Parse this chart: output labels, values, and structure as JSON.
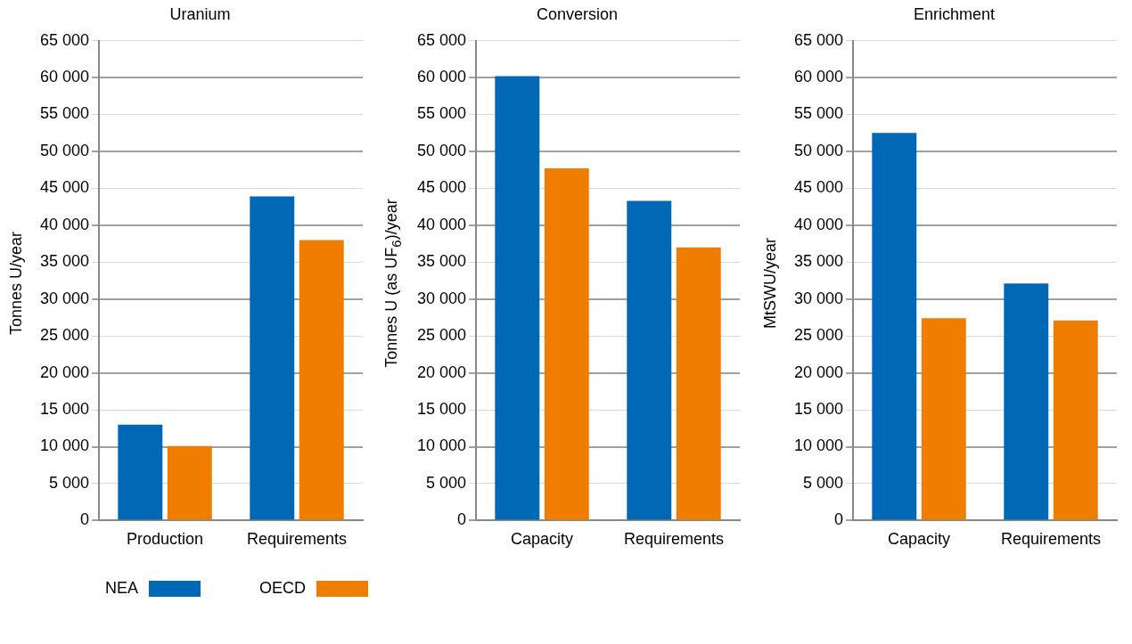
{
  "chart_data": [
    {
      "type": "bar",
      "title": "Uranium",
      "ylabel": "Tonnes U/year",
      "categories": [
        "Production",
        "Requirements"
      ],
      "series": [
        {
          "name": "NEA",
          "color": "#0068b5",
          "values": [
            13000,
            43900
          ]
        },
        {
          "name": "OECD",
          "color": "#ef7d00",
          "values": [
            10100,
            38000
          ]
        }
      ],
      "ylim": [
        0,
        65000
      ],
      "yticks": [
        {
          "value": 0,
          "label": "0"
        },
        {
          "value": 5000,
          "label": "5 000"
        },
        {
          "value": 10000,
          "label": "10 000"
        },
        {
          "value": 15000,
          "label": "15 000"
        },
        {
          "value": 20000,
          "label": "20 000"
        },
        {
          "value": 25000,
          "label": "25 000"
        },
        {
          "value": 30000,
          "label": "30 000"
        },
        {
          "value": 35000,
          "label": "35 000"
        },
        {
          "value": 40000,
          "label": "40 000"
        },
        {
          "value": 45000,
          "label": "45 000"
        },
        {
          "value": 50000,
          "label": "50 000"
        },
        {
          "value": 55000,
          "label": "55 000"
        },
        {
          "value": 60000,
          "label": "60 000"
        },
        {
          "value": 65000,
          "label": "65 000"
        }
      ],
      "grid": "y",
      "legend": "bottom"
    },
    {
      "type": "bar",
      "title": "Conversion",
      "ylabel": "Tonnes U (as UF$_{6}$)/year",
      "categories": [
        "Capacity",
        "Requirements"
      ],
      "series": [
        {
          "color": "#0068b5",
          "values": [
            60200,
            43300
          ]
        },
        {
          "color": "#ef7d00",
          "values": [
            47700,
            37000
          ]
        }
      ],
      "ylim": [
        0,
        65000
      ],
      "yticks": [
        {
          "value": 0,
          "label": "0"
        },
        {
          "value": 5000,
          "label": "5 000"
        },
        {
          "value": 10000,
          "label": "10 000"
        },
        {
          "value": 15000,
          "label": "15 000"
        },
        {
          "value": 20000,
          "label": "20 000"
        },
        {
          "value": 25000,
          "label": "25 000"
        },
        {
          "value": 30000,
          "label": "30 000"
        },
        {
          "value": 35000,
          "label": "35 000"
        },
        {
          "value": 40000,
          "label": "40 000"
        },
        {
          "value": 45000,
          "label": "45 000"
        },
        {
          "value": 50000,
          "label": "50 000"
        },
        {
          "value": 55000,
          "label": "55 000"
        },
        {
          "value": 60000,
          "label": "60 000"
        },
        {
          "value": 65000,
          "label": "65 000"
        }
      ],
      "grid": "y"
    },
    {
      "type": "bar",
      "title": "Enrichment",
      "ylabel": "MtSWU/year",
      "categories": [
        "Capacity",
        "Requirements"
      ],
      "series": [
        {
          "color": "#0068b5",
          "values": [
            52500,
            32100
          ]
        },
        {
          "color": "#ef7d00",
          "values": [
            27400,
            27100
          ]
        }
      ],
      "ylim": [
        0,
        65000
      ],
      "yticks": [
        {
          "value": 0,
          "label": "0"
        },
        {
          "value": 5000,
          "label": "5 000"
        },
        {
          "value": 10000,
          "label": "10 000"
        },
        {
          "value": 15000,
          "label": "15 000"
        },
        {
          "value": 20000,
          "label": "20 000"
        },
        {
          "value": 25000,
          "label": "25 000"
        },
        {
          "value": 30000,
          "label": "30 000"
        },
        {
          "value": 35000,
          "label": "35 000"
        },
        {
          "value": 40000,
          "label": "40 000"
        },
        {
          "value": 45000,
          "label": "45 000"
        },
        {
          "value": 50000,
          "label": "50 000"
        },
        {
          "value": 55000,
          "label": "55 000"
        },
        {
          "value": 60000,
          "label": "60 000"
        },
        {
          "value": 65000,
          "label": "65 000"
        }
      ],
      "grid": "y"
    }
  ]
}
